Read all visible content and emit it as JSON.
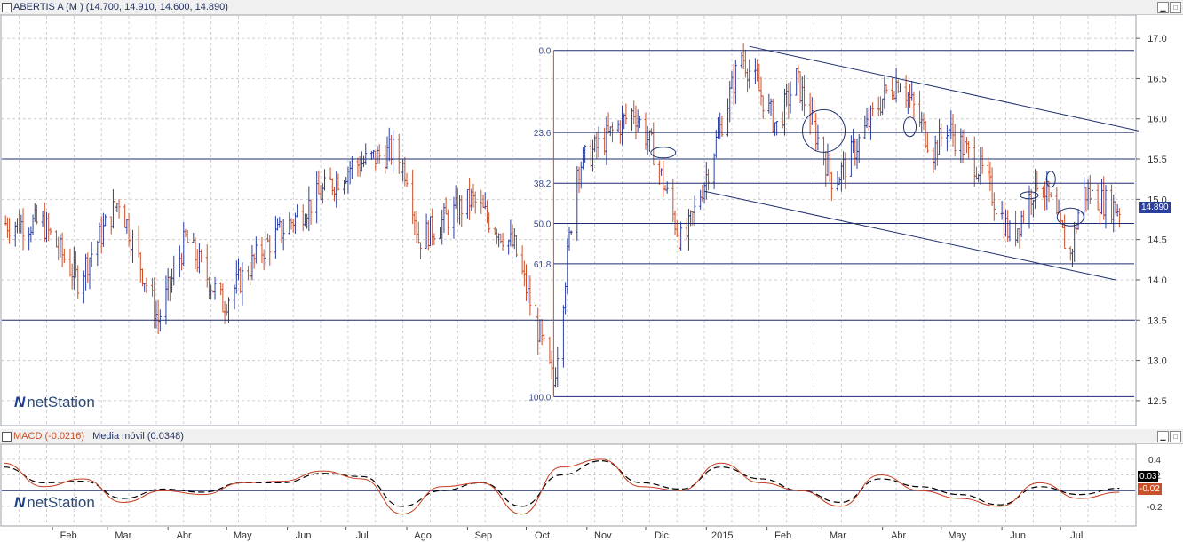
{
  "window": {
    "title": "ABERTIS A (M ) (14.700, 14.910, 14.600, 14.890)",
    "macd_label": "MACD (-0.0216)",
    "signal_label": "Media móvil (0.0348)"
  },
  "brand": {
    "logo_mark": "N",
    "logo_text": "netStation"
  },
  "chart_data": [
    {
      "type": "bar",
      "subtype": "ohlc",
      "series": [
        {
          "name": "ABERTIS A (M )",
          "x": [
            "2014-01-27",
            "2014-02-14",
            "2014-03-07",
            "2014-03-27",
            "2014-04-10",
            "2014-04-29",
            "2014-05-20",
            "2014-06-15",
            "2014-07-03",
            "2014-07-25",
            "2014-08-02",
            "2014-08-07",
            "2014-09-03",
            "2014-09-25",
            "2014-10-15",
            "2014-10-27",
            "2014-11-25",
            "2014-12-05",
            "2014-12-20",
            "2015-01-01",
            "2015-01-19",
            "2015-02-06",
            "2015-02-16",
            "2015-03-07",
            "2015-03-15",
            "2015-04-02",
            "2015-04-10",
            "2015-04-27",
            "2015-05-04",
            "2015-05-23",
            "2015-06-06",
            "2015-06-20",
            "2015-07-06",
            "2015-07-12",
            "2015-07-30"
          ],
          "close": [
            14.7,
            14.0,
            15.0,
            13.5,
            14.5,
            13.7,
            14.4,
            15.0,
            15.4,
            15.6,
            15.3,
            14.5,
            15.0,
            14.4,
            12.7,
            15.4,
            16.1,
            15.6,
            14.4,
            15.3,
            16.8,
            15.9,
            16.5,
            15.2,
            15.5,
            16.3,
            16.5,
            15.6,
            15.9,
            15.3,
            14.5,
            15.3,
            14.3,
            15.1,
            14.89
          ],
          "last": 14.89
        }
      ],
      "y_ticks": [
        12.5,
        13.0,
        13.5,
        14.0,
        14.5,
        15.0,
        15.5,
        16.0,
        16.5,
        17.0
      ],
      "ylim": [
        12.3,
        17.2
      ],
      "x_tick_labels": [
        "Feb",
        "Mar",
        "Abr",
        "May",
        "Jun",
        "Jul",
        "Ago",
        "Sep",
        "Oct",
        "Nov",
        "Dic",
        "2015",
        "Feb",
        "Mar",
        "Abr",
        "May",
        "Jun",
        "Jul"
      ],
      "horizontal_levels": [
        15.5,
        13.5
      ],
      "fibonacci": {
        "levels": [
          {
            "label": "0.0",
            "value": 16.85
          },
          {
            "label": "23.6",
            "value": 15.83
          },
          {
            "label": "38.2",
            "value": 15.2
          },
          {
            "label": "50.0",
            "value": 14.7
          },
          {
            "label": "61.8",
            "value": 14.2
          },
          {
            "label": "100.0",
            "value": 12.55
          }
        ]
      },
      "trendlines": [
        {
          "from": [
            "2015-01-23",
            16.9
          ],
          "to": [
            "2015-08-10",
            15.85
          ]
        },
        {
          "from": [
            "2014-12-31",
            15.1
          ],
          "to": [
            "2015-07-29",
            14.0
          ]
        }
      ],
      "grid": true
    },
    {
      "type": "line",
      "series": [
        {
          "name": "MACD",
          "values": [
            0.35,
            0.05,
            0.15,
            -0.15,
            0.0,
            -0.05,
            0.1,
            0.12,
            0.25,
            0.15,
            -0.3,
            0.05,
            0.1,
            -0.3,
            0.3,
            0.4,
            0.05,
            0.0,
            0.35,
            0.1,
            0.0,
            -0.2,
            0.2,
            0.0,
            -0.1,
            -0.2,
            0.1,
            -0.1,
            -0.02
          ]
        },
        {
          "name": "Media móvil",
          "values": [
            0.3,
            0.1,
            0.12,
            -0.1,
            0.02,
            -0.02,
            0.1,
            0.1,
            0.22,
            0.18,
            -0.2,
            0.0,
            0.1,
            -0.2,
            0.2,
            0.38,
            0.1,
            0.02,
            0.3,
            0.15,
            0.0,
            -0.15,
            0.15,
            0.05,
            -0.05,
            -0.18,
            0.05,
            -0.05,
            0.03
          ]
        }
      ],
      "y_ticks": [
        0.4,
        0.2,
        0.0,
        -0.2
      ],
      "ylim": [
        -0.45,
        0.5
      ],
      "last_values": {
        "signal": "0.03",
        "macd": "-0.02"
      },
      "x_tick_labels": [
        "Feb",
        "Mar",
        "Abr",
        "May",
        "Jun",
        "Jul",
        "Ago",
        "Sep",
        "Oct",
        "Nov",
        "Dic",
        "2015",
        "Feb",
        "Mar",
        "Abr",
        "May",
        "Jun",
        "Jul"
      ]
    }
  ],
  "colors": {
    "up": "#2b3f9e",
    "down": "#c8502a",
    "lines": "#1e2f6f",
    "macd": "#c83c1e",
    "signal": "#000000",
    "last_price_bg": "#2b3f9e"
  }
}
